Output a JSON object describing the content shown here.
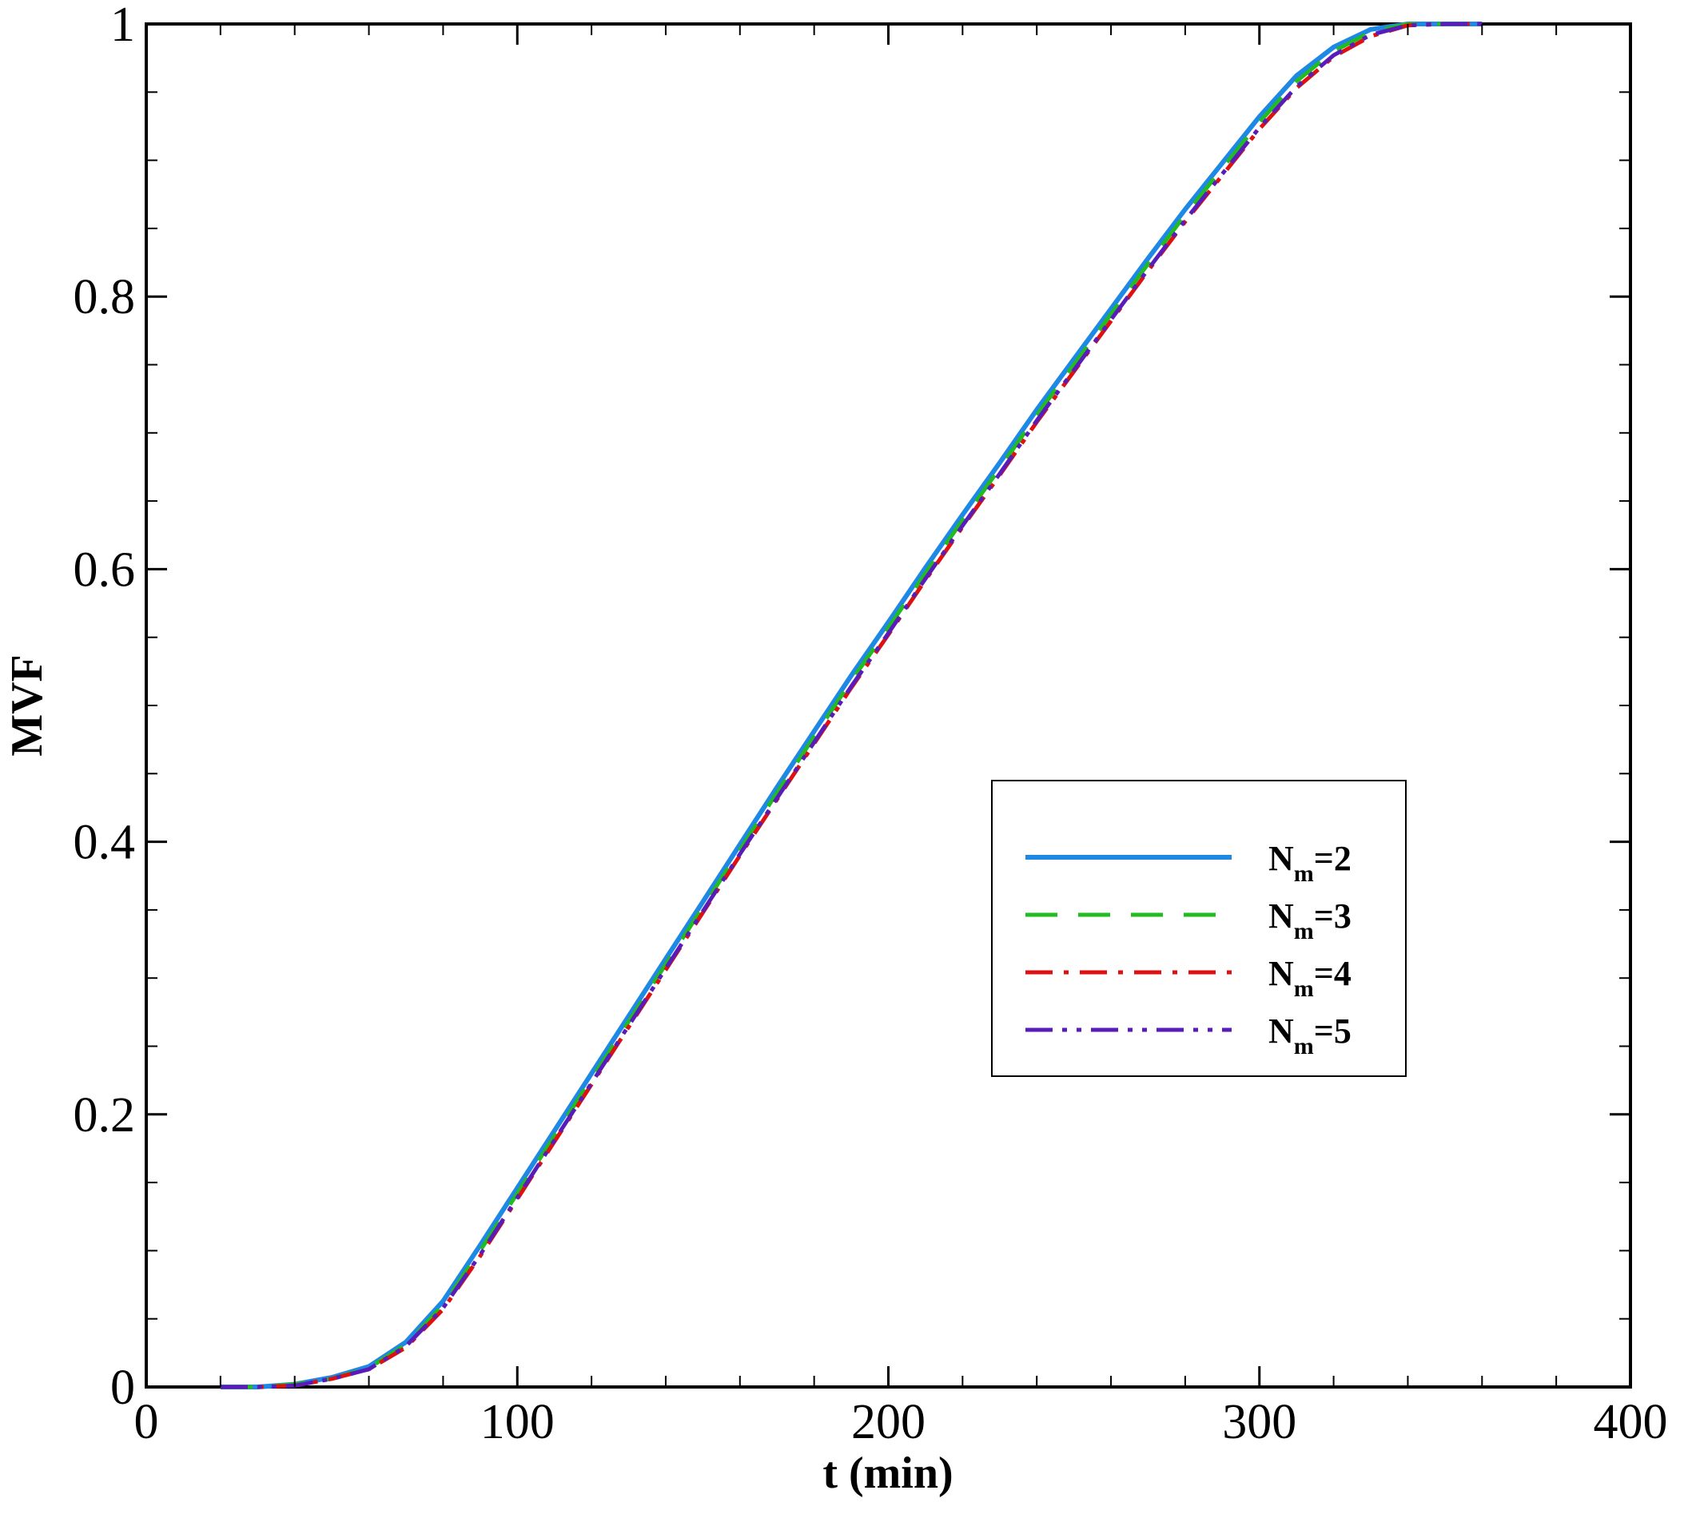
{
  "chart_data": {
    "type": "line",
    "xlabel": "t (min)",
    "ylabel": "MVF",
    "xlim": [
      0,
      400
    ],
    "ylim": [
      0,
      1
    ],
    "xticks": [
      0,
      100,
      200,
      300,
      400
    ],
    "yticks": [
      0,
      0.2,
      0.4,
      0.6,
      0.8,
      1
    ],
    "xtick_labels": [
      "0",
      "100",
      "200",
      "300",
      "400"
    ],
    "ytick_labels": [
      "0",
      "0.2",
      "0.4",
      "0.6",
      "0.8",
      "1"
    ],
    "x_minor_step": 20,
    "y_minor_step": 0.05,
    "grid": false,
    "legend_position": "center-right",
    "series": [
      {
        "name": "N=2",
        "name_main": "N",
        "name_sub": "m",
        "name_suffix": "=2",
        "color": "#1E88E5",
        "dash": "solid",
        "x": [
          20,
          30,
          40,
          50,
          60,
          70,
          80,
          90,
          100,
          110,
          120,
          130,
          140,
          150,
          160,
          170,
          180,
          190,
          200,
          210,
          220,
          230,
          240,
          250,
          260,
          270,
          280,
          290,
          300,
          310,
          320,
          330,
          340,
          350,
          360
        ],
        "values": [
          0,
          0,
          0.002,
          0.007,
          0.015,
          0.033,
          0.063,
          0.104,
          0.146,
          0.188,
          0.23,
          0.272,
          0.314,
          0.356,
          0.398,
          0.44,
          0.481,
          0.522,
          0.561,
          0.601,
          0.64,
          0.678,
          0.717,
          0.754,
          0.791,
          0.828,
          0.864,
          0.898,
          0.932,
          0.962,
          0.983,
          0.996,
          1.0,
          1.0,
          1.0
        ]
      },
      {
        "name": "N=3",
        "name_main": "N",
        "name_sub": "m",
        "name_suffix": "=3",
        "color": "#22BB22",
        "dash": "dashed",
        "x": [
          20,
          30,
          40,
          50,
          60,
          70,
          80,
          90,
          100,
          110,
          120,
          130,
          140,
          150,
          160,
          170,
          180,
          190,
          200,
          210,
          220,
          230,
          240,
          250,
          260,
          270,
          280,
          290,
          300,
          310,
          320,
          330,
          340,
          350,
          360
        ],
        "values": [
          0,
          0,
          0.002,
          0.006,
          0.014,
          0.031,
          0.06,
          0.1,
          0.142,
          0.184,
          0.226,
          0.268,
          0.31,
          0.352,
          0.394,
          0.436,
          0.477,
          0.518,
          0.557,
          0.597,
          0.636,
          0.674,
          0.713,
          0.75,
          0.787,
          0.824,
          0.86,
          0.894,
          0.928,
          0.958,
          0.98,
          0.994,
          1.0,
          1.0,
          1.0
        ]
      },
      {
        "name": "N=4",
        "name_main": "N",
        "name_sub": "m",
        "name_suffix": "=4",
        "color": "#DD1111",
        "dash": "dashdot",
        "x": [
          20,
          30,
          40,
          50,
          60,
          70,
          80,
          90,
          100,
          110,
          120,
          130,
          140,
          150,
          160,
          170,
          180,
          190,
          200,
          210,
          220,
          230,
          240,
          250,
          260,
          270,
          280,
          290,
          300,
          310,
          320,
          330,
          340,
          350,
          360
        ],
        "values": [
          0,
          0,
          0.001,
          0.006,
          0.013,
          0.029,
          0.057,
          0.096,
          0.138,
          0.18,
          0.222,
          0.264,
          0.306,
          0.348,
          0.39,
          0.431,
          0.472,
          0.513,
          0.552,
          0.592,
          0.631,
          0.669,
          0.708,
          0.745,
          0.782,
          0.819,
          0.855,
          0.889,
          0.923,
          0.953,
          0.976,
          0.991,
          0.999,
          1.0,
          1.0
        ]
      },
      {
        "name": "N=5",
        "name_main": "N",
        "name_sub": "m",
        "name_suffix": "=5",
        "color": "#5A1CB8",
        "dash": "dashdotdot",
        "x": [
          20,
          30,
          40,
          50,
          60,
          70,
          80,
          90,
          100,
          110,
          120,
          130,
          140,
          150,
          160,
          170,
          180,
          190,
          200,
          210,
          220,
          230,
          240,
          250,
          260,
          270,
          280,
          290,
          300,
          310,
          320,
          330,
          340,
          350,
          360
        ],
        "values": [
          0,
          0,
          0.001,
          0.006,
          0.013,
          0.03,
          0.058,
          0.097,
          0.139,
          0.181,
          0.223,
          0.265,
          0.307,
          0.349,
          0.391,
          0.432,
          0.473,
          0.514,
          0.553,
          0.593,
          0.632,
          0.67,
          0.709,
          0.746,
          0.783,
          0.82,
          0.856,
          0.89,
          0.924,
          0.954,
          0.977,
          0.992,
          0.999,
          1.0,
          1.0
        ]
      }
    ]
  }
}
